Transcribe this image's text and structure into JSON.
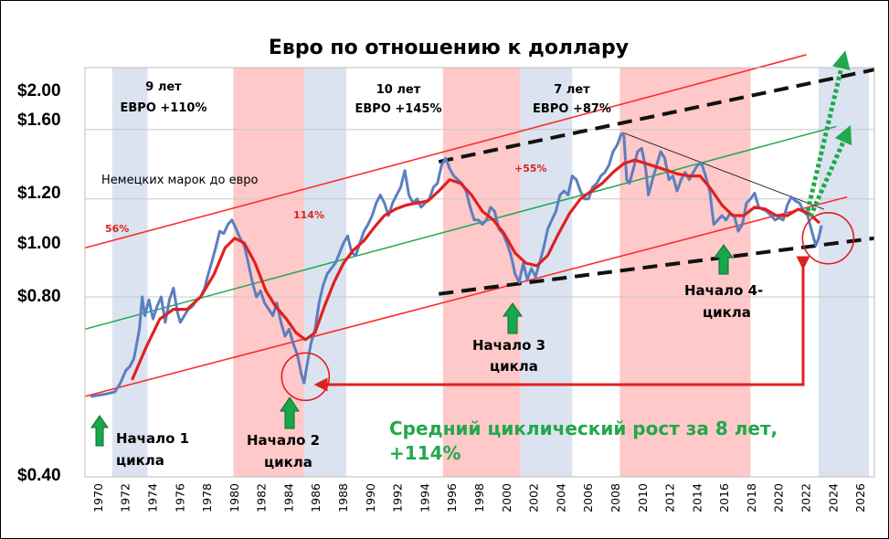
{
  "chart_data": {
    "type": "line",
    "title": "Евро по отношению к доллару",
    "y_axis": {
      "scale": "log",
      "ticks": [
        "$2.00",
        "$1.60",
        "$1.20",
        "$1.00",
        "$0.80",
        "$0.40"
      ],
      "gridlines": [
        1.6,
        1.2,
        0.8
      ]
    },
    "x_axis": {
      "range": [
        1969,
        2027
      ],
      "ticks": [
        "1970",
        "1972",
        "1974",
        "1976",
        "1978",
        "1980",
        "1982",
        "1984",
        "1986",
        "1988",
        "1990",
        "1992",
        "1994",
        "1996",
        "1998",
        "2000",
        "2002",
        "2004",
        "2006",
        "2008",
        "2010",
        "2012",
        "2014",
        "2016",
        "2018",
        "2020",
        "2022",
        "2024",
        "2026"
      ]
    },
    "bands": [
      {
        "from": 1971.0,
        "to": 1973.6,
        "color": "#dbe3f0"
      },
      {
        "from": 1979.9,
        "to": 1985.1,
        "color": "#ffc9c9"
      },
      {
        "from": 1985.1,
        "to": 1988.2,
        "color": "#dbe3f0"
      },
      {
        "from": 1995.3,
        "to": 2001.0,
        "color": "#ffc9c9"
      },
      {
        "from": 2001.0,
        "to": 2004.8,
        "color": "#dbe3f0"
      },
      {
        "from": 2008.3,
        "to": 2017.9,
        "color": "#ffc9c9"
      },
      {
        "from": 2022.9,
        "to": 2026.6,
        "color": "#dbe3f0"
      }
    ],
    "series": [
      {
        "color": "#5b7fc0",
        "points": [
          [
            1969.5,
            0.53
          ],
          [
            1970.5,
            0.535
          ],
          [
            1971.2,
            0.54
          ],
          [
            1971.6,
            0.56
          ],
          [
            1972,
            0.59
          ],
          [
            1972.3,
            0.6
          ],
          [
            1972.6,
            0.62
          ],
          [
            1973,
            0.7
          ],
          [
            1973.2,
            0.8
          ],
          [
            1973.4,
            0.74
          ],
          [
            1973.7,
            0.79
          ],
          [
            1974,
            0.73
          ],
          [
            1974.3,
            0.77
          ],
          [
            1974.6,
            0.8
          ],
          [
            1974.9,
            0.72
          ],
          [
            1975.2,
            0.79
          ],
          [
            1975.5,
            0.83
          ],
          [
            1975.8,
            0.75
          ],
          [
            1976,
            0.72
          ],
          [
            1976.3,
            0.74
          ],
          [
            1976.6,
            0.76
          ],
          [
            1976.9,
            0.77
          ],
          [
            1977.2,
            0.79
          ],
          [
            1977.5,
            0.8
          ],
          [
            1977.8,
            0.83
          ],
          [
            1978,
            0.87
          ],
          [
            1978.3,
            0.92
          ],
          [
            1978.6,
            0.98
          ],
          [
            1978.9,
            1.05
          ],
          [
            1979.2,
            1.04
          ],
          [
            1979.5,
            1.08
          ],
          [
            1979.8,
            1.1
          ],
          [
            1980.1,
            1.06
          ],
          [
            1980.4,
            1.02
          ],
          [
            1980.7,
            0.99
          ],
          [
            1981,
            0.92
          ],
          [
            1981.3,
            0.85
          ],
          [
            1981.6,
            0.8
          ],
          [
            1981.9,
            0.82
          ],
          [
            1982.2,
            0.78
          ],
          [
            1982.5,
            0.76
          ],
          [
            1982.8,
            0.74
          ],
          [
            1983.1,
            0.78
          ],
          [
            1983.4,
            0.72
          ],
          [
            1983.7,
            0.68
          ],
          [
            1984,
            0.7
          ],
          [
            1984.3,
            0.66
          ],
          [
            1984.6,
            0.63
          ],
          [
            1984.9,
            0.58
          ],
          [
            1985.1,
            0.56
          ],
          [
            1985.3,
            0.6
          ],
          [
            1985.6,
            0.66
          ],
          [
            1985.9,
            0.7
          ],
          [
            1986.2,
            0.78
          ],
          [
            1986.5,
            0.84
          ],
          [
            1986.8,
            0.88
          ],
          [
            1987.1,
            0.9
          ],
          [
            1987.4,
            0.92
          ],
          [
            1987.7,
            0.96
          ],
          [
            1988,
            1.0
          ],
          [
            1988.3,
            1.03
          ],
          [
            1988.6,
            0.96
          ],
          [
            1988.9,
            0.95
          ],
          [
            1989.2,
            1.0
          ],
          [
            1989.5,
            1.05
          ],
          [
            1989.8,
            1.08
          ],
          [
            1990.1,
            1.12
          ],
          [
            1990.4,
            1.18
          ],
          [
            1990.7,
            1.22
          ],
          [
            1991,
            1.18
          ],
          [
            1991.3,
            1.12
          ],
          [
            1991.6,
            1.18
          ],
          [
            1991.9,
            1.22
          ],
          [
            1992.2,
            1.26
          ],
          [
            1992.5,
            1.35
          ],
          [
            1992.8,
            1.22
          ],
          [
            1993.1,
            1.18
          ],
          [
            1993.4,
            1.2
          ],
          [
            1993.7,
            1.16
          ],
          [
            1994,
            1.18
          ],
          [
            1994.3,
            1.2
          ],
          [
            1994.6,
            1.26
          ],
          [
            1994.9,
            1.28
          ],
          [
            1995.2,
            1.38
          ],
          [
            1995.5,
            1.42
          ],
          [
            1995.8,
            1.36
          ],
          [
            1996.1,
            1.32
          ],
          [
            1996.4,
            1.3
          ],
          [
            1996.7,
            1.28
          ],
          [
            1997,
            1.24
          ],
          [
            1997.3,
            1.16
          ],
          [
            1997.6,
            1.1
          ],
          [
            1997.9,
            1.1
          ],
          [
            1998.2,
            1.08
          ],
          [
            1998.5,
            1.1
          ],
          [
            1998.8,
            1.16
          ],
          [
            1999.1,
            1.14
          ],
          [
            1999.4,
            1.06
          ],
          [
            1999.7,
            1.04
          ],
          [
            2000,
            1.0
          ],
          [
            2000.3,
            0.95
          ],
          [
            2000.6,
            0.88
          ],
          [
            2000.9,
            0.85
          ],
          [
            2001.2,
            0.92
          ],
          [
            2001.5,
            0.86
          ],
          [
            2001.8,
            0.9
          ],
          [
            2002.1,
            0.87
          ],
          [
            2002.4,
            0.92
          ],
          [
            2002.7,
            0.98
          ],
          [
            2003,
            1.06
          ],
          [
            2003.3,
            1.1
          ],
          [
            2003.6,
            1.14
          ],
          [
            2003.9,
            1.22
          ],
          [
            2004.2,
            1.24
          ],
          [
            2004.5,
            1.22
          ],
          [
            2004.8,
            1.32
          ],
          [
            2005.1,
            1.3
          ],
          [
            2005.4,
            1.24
          ],
          [
            2005.7,
            1.2
          ],
          [
            2006,
            1.2
          ],
          [
            2006.3,
            1.26
          ],
          [
            2006.6,
            1.28
          ],
          [
            2006.9,
            1.32
          ],
          [
            2007.2,
            1.34
          ],
          [
            2007.5,
            1.38
          ],
          [
            2007.8,
            1.46
          ],
          [
            2008.1,
            1.5
          ],
          [
            2008.4,
            1.57
          ],
          [
            2008.6,
            1.56
          ],
          [
            2008.8,
            1.3
          ],
          [
            2009,
            1.28
          ],
          [
            2009.3,
            1.36
          ],
          [
            2009.6,
            1.46
          ],
          [
            2009.9,
            1.48
          ],
          [
            2010.2,
            1.36
          ],
          [
            2010.4,
            1.22
          ],
          [
            2010.7,
            1.3
          ],
          [
            2011,
            1.38
          ],
          [
            2011.3,
            1.46
          ],
          [
            2011.6,
            1.42
          ],
          [
            2011.9,
            1.3
          ],
          [
            2012.2,
            1.32
          ],
          [
            2012.5,
            1.24
          ],
          [
            2012.8,
            1.3
          ],
          [
            2013.1,
            1.34
          ],
          [
            2013.4,
            1.3
          ],
          [
            2013.7,
            1.34
          ],
          [
            2014,
            1.38
          ],
          [
            2014.3,
            1.39
          ],
          [
            2014.6,
            1.32
          ],
          [
            2014.9,
            1.24
          ],
          [
            2015.2,
            1.08
          ],
          [
            2015.5,
            1.1
          ],
          [
            2015.8,
            1.12
          ],
          [
            2016.1,
            1.1
          ],
          [
            2016.4,
            1.13
          ],
          [
            2016.7,
            1.12
          ],
          [
            2017,
            1.05
          ],
          [
            2017.3,
            1.08
          ],
          [
            2017.6,
            1.18
          ],
          [
            2017.9,
            1.2
          ],
          [
            2018.2,
            1.23
          ],
          [
            2018.5,
            1.16
          ],
          [
            2018.8,
            1.15
          ],
          [
            2019.1,
            1.14
          ],
          [
            2019.4,
            1.12
          ],
          [
            2019.7,
            1.1
          ],
          [
            2020,
            1.11
          ],
          [
            2020.3,
            1.1
          ],
          [
            2020.6,
            1.17
          ],
          [
            2020.9,
            1.21
          ],
          [
            2021.2,
            1.19
          ],
          [
            2021.5,
            1.18
          ],
          [
            2021.8,
            1.14
          ],
          [
            2022.1,
            1.12
          ],
          [
            2022.4,
            1.05
          ],
          [
            2022.7,
            0.99
          ],
          [
            2022.9,
            1.02
          ],
          [
            2023.1,
            1.07
          ]
        ]
      },
      {
        "color": "#e02020",
        "points": [
          [
            1972.5,
            0.57
          ],
          [
            1973.5,
            0.65
          ],
          [
            1974.5,
            0.73
          ],
          [
            1975.5,
            0.76
          ],
          [
            1976.5,
            0.76
          ],
          [
            1977.5,
            0.8
          ],
          [
            1978.5,
            0.88
          ],
          [
            1979.3,
            0.98
          ],
          [
            1980,
            1.02
          ],
          [
            1980.7,
            1.0
          ],
          [
            1981.5,
            0.92
          ],
          [
            1982.3,
            0.82
          ],
          [
            1983,
            0.77
          ],
          [
            1983.8,
            0.73
          ],
          [
            1984.5,
            0.69
          ],
          [
            1985.2,
            0.67
          ],
          [
            1985.9,
            0.69
          ],
          [
            1986.6,
            0.77
          ],
          [
            1987.3,
            0.85
          ],
          [
            1988,
            0.92
          ],
          [
            1988.7,
            0.97
          ],
          [
            1989.5,
            1.01
          ],
          [
            1990.3,
            1.07
          ],
          [
            1991,
            1.12
          ],
          [
            1991.8,
            1.15
          ],
          [
            1992.6,
            1.17
          ],
          [
            1993.4,
            1.18
          ],
          [
            1994.2,
            1.19
          ],
          [
            1995,
            1.24
          ],
          [
            1995.8,
            1.3
          ],
          [
            1996.6,
            1.28
          ],
          [
            1997.4,
            1.22
          ],
          [
            1998.2,
            1.14
          ],
          [
            1999,
            1.1
          ],
          [
            1999.8,
            1.04
          ],
          [
            2000.6,
            0.96
          ],
          [
            2001.4,
            0.92
          ],
          [
            2002.2,
            0.91
          ],
          [
            2003,
            0.95
          ],
          [
            2003.8,
            1.04
          ],
          [
            2004.6,
            1.13
          ],
          [
            2005.4,
            1.2
          ],
          [
            2006.2,
            1.24
          ],
          [
            2007,
            1.28
          ],
          [
            2007.8,
            1.34
          ],
          [
            2008.6,
            1.39
          ],
          [
            2009.4,
            1.41
          ],
          [
            2010.2,
            1.39
          ],
          [
            2011,
            1.37
          ],
          [
            2011.8,
            1.35
          ],
          [
            2012.6,
            1.33
          ],
          [
            2013.4,
            1.32
          ],
          [
            2014.2,
            1.32
          ],
          [
            2015,
            1.25
          ],
          [
            2015.8,
            1.17
          ],
          [
            2016.6,
            1.12
          ],
          [
            2017.4,
            1.12
          ],
          [
            2018.2,
            1.16
          ],
          [
            2019,
            1.15
          ],
          [
            2019.8,
            1.12
          ],
          [
            2020.6,
            1.12
          ],
          [
            2021.4,
            1.15
          ],
          [
            2022.2,
            1.13
          ],
          [
            2022.9,
            1.09
          ]
        ]
      }
    ],
    "trend_lines": {
      "channel": [
        {
          "from": [
            1969,
            0.98
          ],
          "to": [
            2022,
            2.18
          ],
          "color": "#ff2b2b",
          "width": 1.6
        },
        {
          "from": [
            1969,
            0.53
          ],
          "to": [
            2025,
            1.21
          ],
          "color": "#ff2b2b",
          "width": 1.6
        }
      ],
      "midline": {
        "from": [
          1969,
          0.7
        ],
        "to": [
          2024.2,
          1.62
        ],
        "color": "#1faa4b",
        "width": 1.5
      },
      "dashed": [
        {
          "from": [
            1995,
            1.4
          ],
          "to": [
            2027,
            2.05
          ]
        },
        {
          "from": [
            1995,
            0.81
          ],
          "to": [
            2027,
            1.02
          ]
        }
      ],
      "thin": {
        "from": [
          2008.5,
          1.58
        ],
        "to": [
          2023.3,
          1.15
        ]
      }
    },
    "circles": [
      {
        "x": 1985.2,
        "y": 0.575,
        "r": 26
      },
      {
        "x": 2023.6,
        "y": 1.02,
        "r": 28
      }
    ],
    "annotations": {
      "cycle1": {
        "years": "9 лет",
        "gain": "ЕВРО +110%"
      },
      "cycle2": {
        "years": "10 лет",
        "gain": "ЕВРО +145%"
      },
      "cycle3": {
        "years": "7 лет",
        "gain": "ЕВРО +87%"
      },
      "mark_note": "Немецких марок до евро",
      "pct_56": "56%",
      "pct_114": "114%",
      "pct_55": "+55%",
      "start1": [
        "Начало 1",
        "цикла"
      ],
      "start2": [
        "Начало 2",
        "цикла"
      ],
      "start3": [
        "Начало 3",
        "цикла"
      ],
      "start4": [
        "Начало 4-",
        "цикла"
      ],
      "average": [
        "Средний циклический рост за 8 лет,",
        "+114%"
      ]
    }
  }
}
